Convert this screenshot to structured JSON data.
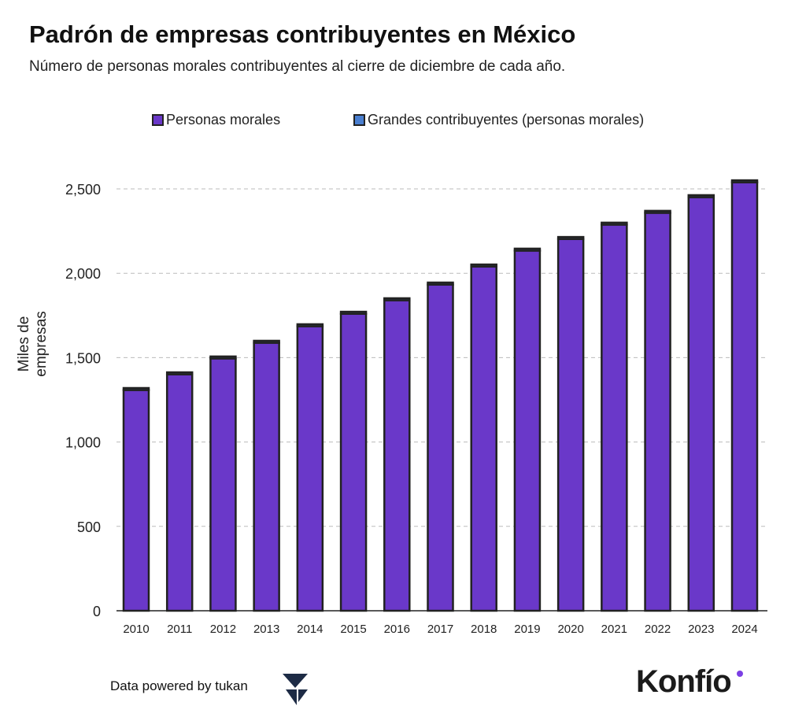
{
  "title": "Padrón de empresas contribuyentes en México",
  "subtitle": "Número de personas morales contribuyentes al cierre de diciembre de cada año.",
  "footer": {
    "credit": "Data powered by tukan",
    "brand": "Konfío"
  },
  "chart_data": {
    "type": "bar",
    "stacked": true,
    "title": "Padrón de empresas contribuyentes en México",
    "ylabel": "Miles de empresas",
    "xlabel": "",
    "ylim": [
      0,
      2500
    ],
    "yticks": [
      0,
      500,
      1000,
      1500,
      2000,
      2500
    ],
    "ytick_labels": [
      "0",
      "500",
      "1,000",
      "1,500",
      "2,000",
      "2,500"
    ],
    "grid": true,
    "legend": "top",
    "categories": [
      "2010",
      "2011",
      "2012",
      "2013",
      "2014",
      "2015",
      "2016",
      "2017",
      "2018",
      "2019",
      "2020",
      "2021",
      "2022",
      "2023",
      "2024"
    ],
    "series": [
      {
        "name": "Personas morales",
        "color": "#6a38c9",
        "values": [
          1308,
          1401,
          1495,
          1588,
          1686,
          1760,
          1840,
          1933,
          2040,
          2134,
          2203,
          2288,
          2358,
          2451,
          2539
        ]
      },
      {
        "name": "Grandes contribuyentes (personas morales)",
        "color": "#4a7fd0",
        "values": [
          12,
          12,
          12,
          12,
          12,
          12,
          12,
          12,
          12,
          12,
          12,
          12,
          12,
          12,
          12
        ]
      }
    ]
  }
}
